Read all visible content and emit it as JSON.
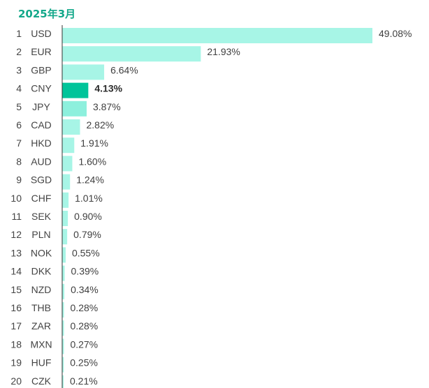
{
  "chart_data": {
    "type": "bar",
    "orientation": "horizontal",
    "title": "2025年3月",
    "highlight": "CNY",
    "colors": {
      "bar": "#a7f5e6",
      "bar_highlight": "#00c49a",
      "bar_cny_neighbor": "#8df0dd",
      "axis": "#333333",
      "title": "#13a88a"
    },
    "rows": [
      {
        "rank": "1",
        "code": "USD",
        "value": 49.08,
        "label": "49.08%"
      },
      {
        "rank": "2",
        "code": "EUR",
        "value": 21.93,
        "label": "21.93%"
      },
      {
        "rank": "3",
        "code": "GBP",
        "value": 6.64,
        "label": "6.64%"
      },
      {
        "rank": "4",
        "code": "CNY",
        "value": 4.13,
        "label": "4.13%"
      },
      {
        "rank": "5",
        "code": "JPY",
        "value": 3.87,
        "label": "3.87%"
      },
      {
        "rank": "6",
        "code": "CAD",
        "value": 2.82,
        "label": "2.82%"
      },
      {
        "rank": "7",
        "code": "HKD",
        "value": 1.91,
        "label": "1.91%"
      },
      {
        "rank": "8",
        "code": "AUD",
        "value": 1.6,
        "label": "1.60%"
      },
      {
        "rank": "9",
        "code": "SGD",
        "value": 1.24,
        "label": "1.24%"
      },
      {
        "rank": "10",
        "code": "CHF",
        "value": 1.01,
        "label": "1.01%"
      },
      {
        "rank": "11",
        "code": "SEK",
        "value": 0.9,
        "label": "0.90%"
      },
      {
        "rank": "12",
        "code": "PLN",
        "value": 0.79,
        "label": "0.79%"
      },
      {
        "rank": "13",
        "code": "NOK",
        "value": 0.55,
        "label": "0.55%"
      },
      {
        "rank": "14",
        "code": "DKK",
        "value": 0.39,
        "label": "0.39%"
      },
      {
        "rank": "15",
        "code": "NZD",
        "value": 0.34,
        "label": "0.34%"
      },
      {
        "rank": "16",
        "code": "THB",
        "value": 0.28,
        "label": "0.28%"
      },
      {
        "rank": "17",
        "code": "ZAR",
        "value": 0.28,
        "label": "0.28%"
      },
      {
        "rank": "18",
        "code": "MXN",
        "value": 0.27,
        "label": "0.27%"
      },
      {
        "rank": "19",
        "code": "HUF",
        "value": 0.25,
        "label": "0.25%"
      },
      {
        "rank": "20",
        "code": "CZK",
        "value": 0.21,
        "label": "0.21%"
      }
    ]
  }
}
